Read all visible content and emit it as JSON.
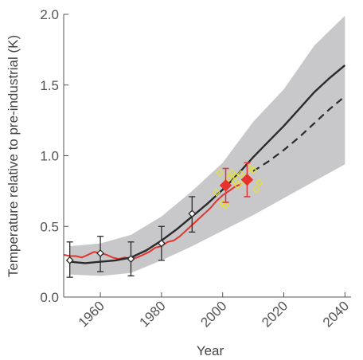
{
  "chart_data": {
    "type": "line",
    "title": "",
    "xlabel": "Year",
    "ylabel": "Temperature relative to pre-industrial (K)",
    "xlim": [
      1948,
      2042
    ],
    "ylim": [
      0.0,
      2.0
    ],
    "x_ticks": [
      1960,
      1980,
      2000,
      2020,
      2040
    ],
    "x_tick_labels": [
      "1960",
      "1980",
      "2000",
      "2020",
      "2040"
    ],
    "y_ticks": [
      0.0,
      0.5,
      1.0,
      1.5,
      2.0
    ],
    "y_tick_labels": [
      "0.0",
      "0.5",
      "1.0",
      "1.5",
      "2.0"
    ],
    "grid": false,
    "legend": "none",
    "colors": {
      "band": "#c8c8ca",
      "model_line": "#2b2b2b",
      "observed_line": "#e3342f",
      "observed_points": "#e3342f",
      "scatter_points": "#e3df3c",
      "error_bars_black": "#2b2b2b",
      "error_bars_red": "#e3342f",
      "axis": "#555555"
    },
    "uncertainty_band": {
      "x": [
        1950,
        1960,
        1970,
        1980,
        1990,
        2000,
        2010,
        2020,
        2030,
        2040
      ],
      "lower": [
        0.16,
        0.15,
        0.17,
        0.26,
        0.36,
        0.47,
        0.58,
        0.7,
        0.82,
        0.94
      ],
      "upper": [
        0.36,
        0.38,
        0.44,
        0.57,
        0.75,
        0.95,
        1.24,
        1.47,
        1.78,
        1.99
      ]
    },
    "series": [
      {
        "type": "line",
        "style": "solid",
        "x": [
          1950,
          1955,
          1960,
          1965,
          1970,
          1975,
          1980,
          1985,
          1990,
          1995,
          2000,
          2005,
          2010,
          2015,
          2020,
          2025,
          2030,
          2035,
          2040
        ],
        "y": [
          0.25,
          0.24,
          0.25,
          0.26,
          0.28,
          0.33,
          0.4,
          0.48,
          0.57,
          0.66,
          0.76,
          0.87,
          0.99,
          1.1,
          1.21,
          1.33,
          1.45,
          1.55,
          1.64
        ]
      },
      {
        "type": "line",
        "style": "dashed",
        "x": [
          2010,
          2015,
          2020,
          2025,
          2030,
          2035,
          2040
        ],
        "y": [
          0.89,
          0.96,
          1.04,
          1.13,
          1.23,
          1.33,
          1.42
        ]
      },
      {
        "type": "line",
        "style": "solid",
        "x": [
          1948,
          1950,
          1952,
          1954,
          1956,
          1958,
          1960,
          1962,
          1964,
          1966,
          1968,
          1970,
          1972,
          1974,
          1976,
          1978,
          1980,
          1982,
          1984,
          1986,
          1988,
          1990,
          1992,
          1994,
          1996,
          1998,
          2000,
          2002,
          2004,
          2006
        ],
        "y": [
          0.3,
          0.29,
          0.29,
          0.28,
          0.3,
          0.32,
          0.31,
          0.3,
          0.28,
          0.27,
          0.28,
          0.27,
          0.28,
          0.3,
          0.32,
          0.35,
          0.36,
          0.39,
          0.4,
          0.43,
          0.47,
          0.51,
          0.55,
          0.59,
          0.63,
          0.68,
          0.72,
          0.75,
          0.78,
          0.8
        ]
      },
      {
        "type": "errorbar",
        "marker": "open-diamond",
        "x": [
          1950,
          1960,
          1970,
          1980,
          1990
        ],
        "y": [
          0.26,
          0.31,
          0.27,
          0.38,
          0.59
        ],
        "yerr_low": [
          0.12,
          0.13,
          0.12,
          0.12,
          0.13
        ],
        "yerr_high": [
          0.13,
          0.12,
          0.12,
          0.12,
          0.12
        ]
      },
      {
        "type": "errorbar",
        "marker": "filled-diamond",
        "x": [
          2001,
          2008
        ],
        "y": [
          0.79,
          0.83
        ],
        "yerr_low": [
          0.12,
          0.12
        ],
        "yerr_high": [
          0.12,
          0.12
        ]
      },
      {
        "type": "scatter",
        "marker": "open-diamond",
        "x": [
          1999,
          2000,
          2002,
          2003,
          2004,
          2005,
          2006,
          2007,
          2008,
          2009,
          2010,
          2011,
          2012,
          1998,
          2001,
          2004
        ],
        "y": [
          0.88,
          0.66,
          0.84,
          0.88,
          0.86,
          0.79,
          0.87,
          0.82,
          0.85,
          0.91,
          0.9,
          0.76,
          0.81,
          0.74,
          0.65,
          0.82
        ]
      }
    ]
  }
}
